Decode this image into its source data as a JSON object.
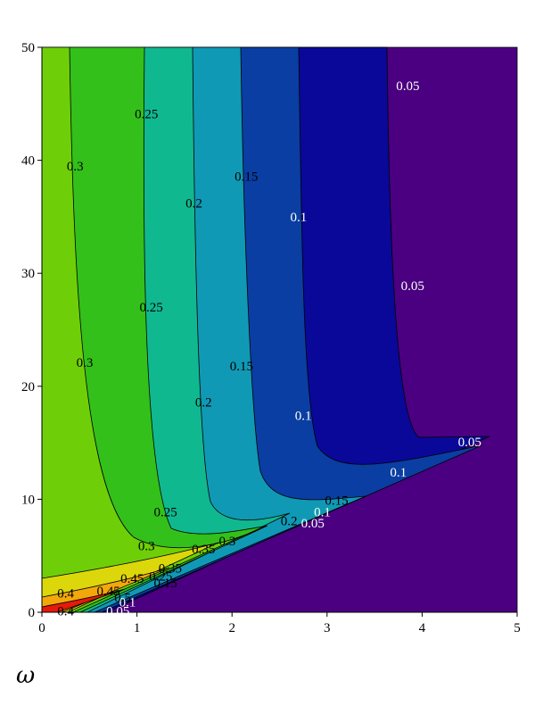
{
  "chart_data": {
    "type": "contour",
    "title": "",
    "xlabel": "ω",
    "ylabel": "",
    "xlim": [
      0,
      5
    ],
    "ylim": [
      0,
      50
    ],
    "x_ticks": [
      "0",
      "1",
      "2",
      "3",
      "4",
      "5"
    ],
    "y_ticks": [
      "0",
      "10",
      "20",
      "30",
      "40",
      "50"
    ],
    "grid": false,
    "colors": {
      "background_region": "#4a0080",
      "level_0_05": "#0a0898",
      "level_0_10": "#0a3ea2",
      "level_0_15": "#1099b5",
      "level_0_20": "#10b890",
      "level_0_25": "#33c01a",
      "level_0_30": "#6ecf08",
      "level_0_40": "#dcd70b",
      "level_0_45": "#f2a80a",
      "level_0_50": "#e41a0a"
    },
    "contour_levels": [
      "0.05",
      "0.1",
      "0.15",
      "0.2",
      "0.25",
      "0.3",
      "0.35",
      "0.4",
      "0.45"
    ],
    "contour_labels": [
      {
        "text": "0.05",
        "x": 3.85,
        "y": 46.6,
        "color": "white"
      },
      {
        "text": "0.05",
        "x": 3.9,
        "y": 28.9,
        "color": "white"
      },
      {
        "text": "0.05",
        "x": 4.5,
        "y": 15.1,
        "color": "white"
      },
      {
        "text": "0.05",
        "x": 2.85,
        "y": 7.9,
        "color": "white"
      },
      {
        "text": "0.05",
        "x": 0.8,
        "y": 0.1,
        "color": "white"
      },
      {
        "text": "0.1",
        "x": 2.7,
        "y": 35.0,
        "color": "white"
      },
      {
        "text": "0.1",
        "x": 2.75,
        "y": 17.4,
        "color": "white"
      },
      {
        "text": "0.1",
        "x": 3.75,
        "y": 12.4,
        "color": "white"
      },
      {
        "text": "0.1",
        "x": 2.95,
        "y": 8.9,
        "color": "white"
      },
      {
        "text": "0.1",
        "x": 0.9,
        "y": 0.9,
        "color": "white"
      },
      {
        "text": "0.15",
        "x": 2.15,
        "y": 38.6,
        "color": "black"
      },
      {
        "text": "0.15",
        "x": 2.1,
        "y": 21.8,
        "color": "black"
      },
      {
        "text": "0.15",
        "x": 3.1,
        "y": 9.9,
        "color": "black"
      },
      {
        "text": "0.15",
        "x": 1.3,
        "y": 2.6,
        "color": "black"
      },
      {
        "text": "0.2",
        "x": 1.6,
        "y": 36.2,
        "color": "black"
      },
      {
        "text": "0.2",
        "x": 1.7,
        "y": 18.6,
        "color": "black"
      },
      {
        "text": "0.2",
        "x": 2.6,
        "y": 8.1,
        "color": "black"
      },
      {
        "text": "0.25",
        "x": 1.1,
        "y": 44.1,
        "color": "black"
      },
      {
        "text": "0.25",
        "x": 1.15,
        "y": 27.0,
        "color": "black"
      },
      {
        "text": "0.25",
        "x": 1.3,
        "y": 8.9,
        "color": "black"
      },
      {
        "text": "0.25",
        "x": 1.25,
        "y": 3.2,
        "color": "black"
      },
      {
        "text": "0.3",
        "x": 0.35,
        "y": 39.5,
        "color": "black"
      },
      {
        "text": "0.3",
        "x": 0.45,
        "y": 22.1,
        "color": "black"
      },
      {
        "text": "0.3",
        "x": 1.1,
        "y": 5.9,
        "color": "black"
      },
      {
        "text": "0.3",
        "x": 1.95,
        "y": 6.3,
        "color": "black"
      },
      {
        "text": "0.35",
        "x": 1.7,
        "y": 5.6,
        "color": "black"
      },
      {
        "text": "0.35",
        "x": 1.35,
        "y": 3.9,
        "color": "black"
      },
      {
        "text": "0.4",
        "x": 0.25,
        "y": 1.7,
        "color": "black"
      },
      {
        "text": "0.4",
        "x": 0.25,
        "y": 0.1,
        "color": "black"
      },
      {
        "text": "0.45",
        "x": 0.95,
        "y": 3.0,
        "color": "black"
      },
      {
        "text": "0.45",
        "x": 0.7,
        "y": 1.9,
        "color": "black"
      },
      {
        "text": "0.5",
        "x": 0.85,
        "y": 1.3,
        "color": "black"
      }
    ]
  }
}
